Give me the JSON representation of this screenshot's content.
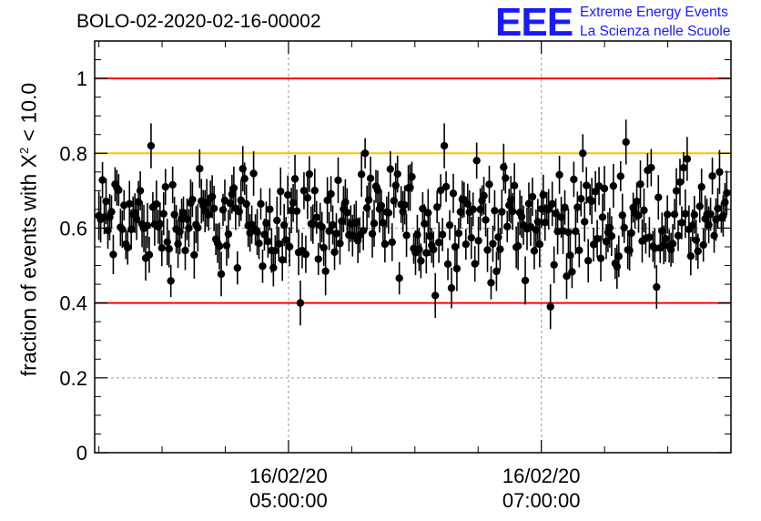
{
  "header": {
    "title": "BOLO-02-2020-02-16-00002"
  },
  "logo": {
    "mark": "EEE",
    "line1": "Extreme Energy Events",
    "line2": "La Scienza nelle Scuole",
    "color": "#1a1aff"
  },
  "chart_data": {
    "type": "scatter",
    "title": "BOLO-02-2020-02-16-00002",
    "ylabel_prefix": "fraction of events with ",
    "ylabel_chi": "X",
    "ylabel_sup": "2",
    "ylabel_suffix": " < 10.0",
    "xlim": [
      "16/02/20 03:28:00",
      "16/02/20 08:30:00"
    ],
    "ylim": [
      0,
      1.1
    ],
    "y_ticks": [
      "0",
      "0.2",
      "0.4",
      "0.6",
      "0.8",
      "1"
    ],
    "x_ticks": [
      {
        "date": "16/02/20",
        "time": "05:00:00"
      },
      {
        "date": "16/02/20",
        "time": "07:00:00"
      }
    ],
    "grid": true,
    "reference_lines": [
      {
        "y": 1.0,
        "color": "#ff0000"
      },
      {
        "y": 0.8,
        "color": "#ffbf00"
      },
      {
        "y": 0.4,
        "color": "#ff0000"
      }
    ],
    "point_count": 350,
    "y_mean": 0.62,
    "highlights": [
      {
        "x": "16/02/20 03:55:00",
        "y": 0.82
      },
      {
        "x": "16/02/20 05:06:00",
        "y": 0.4
      },
      {
        "x": "16/02/20 06:10:00",
        "y": 0.42
      },
      {
        "x": "16/02/20 06:14:00",
        "y": 0.82
      },
      {
        "x": "16/02/20 07:04:00",
        "y": 0.39
      },
      {
        "x": "16/02/20 07:40:00",
        "y": 0.83
      }
    ],
    "error_bar_typical": 0.05,
    "series": [
      {
        "color": "#000000"
      }
    ]
  }
}
